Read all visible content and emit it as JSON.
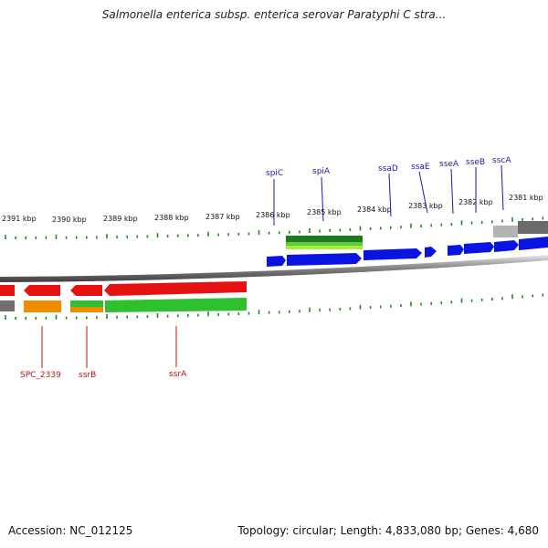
{
  "title": "Salmonella enterica subsp. enterica serovar Paratyphi C stra...",
  "footer": {
    "accession": "Accession: NC_012125",
    "topology": "Topology: circular; Length: 4,833,080 bp; Genes: 4,680"
  },
  "colors": {
    "forward_gene": "#0a14e0",
    "reverse_gene": "#e61212",
    "forward_label": "#1a1aa8",
    "reverse_label": "#c01010",
    "tick": "#1f8a1f",
    "green_feature": "#2ec02e",
    "lime_feature": "#99e633",
    "dark_green_feature": "#1e7a1e",
    "orange_feature": "#f08c00",
    "gray_feature": "#9a9a9a"
  },
  "kbp_ticks": [
    {
      "label": "2391 kbp"
    },
    {
      "label": "2390 kbp"
    },
    {
      "label": "2389 kbp"
    },
    {
      "label": "2388 kbp"
    },
    {
      "label": "2387 kbp"
    },
    {
      "label": "2386 kbp"
    },
    {
      "label": "2385 kbp"
    },
    {
      "label": "2384 kbp"
    },
    {
      "label": "2383 kbp"
    },
    {
      "label": "2382 kbp"
    },
    {
      "label": "2381 kbp"
    }
  ],
  "forward_genes": [
    {
      "label": "spiC"
    },
    {
      "label": "spiA"
    },
    {
      "label": "ssaD"
    },
    {
      "label": "ssaE"
    },
    {
      "label": "sseA"
    },
    {
      "label": "sseB"
    },
    {
      "label": "sscA"
    }
  ],
  "reverse_genes": [
    {
      "label": "SPC_2339"
    },
    {
      "label": "ssrB"
    },
    {
      "label": "ssrA"
    }
  ]
}
